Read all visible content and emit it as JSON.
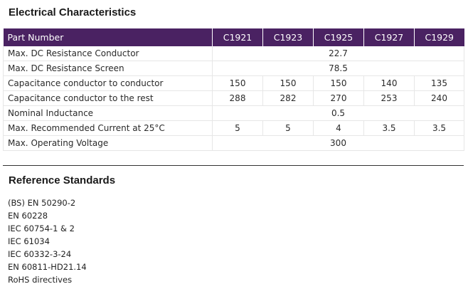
{
  "electrical": {
    "title": "Electrical Characteristics",
    "columns": [
      "Part Number",
      "C1921",
      "C1923",
      "C1925",
      "C1927",
      "C1929"
    ],
    "rows": [
      {
        "label": "Max. DC Resistance Conductor",
        "merged": true,
        "value": "22.7"
      },
      {
        "label": "Max. DC Resistance Screen",
        "merged": true,
        "value": "78.5"
      },
      {
        "label": "Capacitance conductor to conductor",
        "merged": false,
        "values": [
          "150",
          "150",
          "150",
          "140",
          "135"
        ]
      },
      {
        "label": "Capacitance conductor to the rest",
        "merged": false,
        "values": [
          "288",
          "282",
          "270",
          "253",
          "240"
        ]
      },
      {
        "label": "Nominal Inductance",
        "merged": true,
        "value": "0.5"
      },
      {
        "label": "Max. Recommended Current at 25°C",
        "merged": false,
        "values": [
          "5",
          "5",
          "4",
          "3.5",
          "3.5"
        ]
      },
      {
        "label": "Max. Operating Voltage",
        "merged": true,
        "value": "300"
      }
    ]
  },
  "reference": {
    "title": "Reference Standards",
    "items": [
      "(BS) EN 50290-2",
      "EN 60228",
      "IEC 60754-1 & 2",
      "IEC 61034",
      "IEC 60332-3-24",
      "EN 60811-HD21.14",
      "RoHS directives"
    ]
  },
  "colors": {
    "header_bg": "#4a2262",
    "header_text": "#ffffff"
  }
}
